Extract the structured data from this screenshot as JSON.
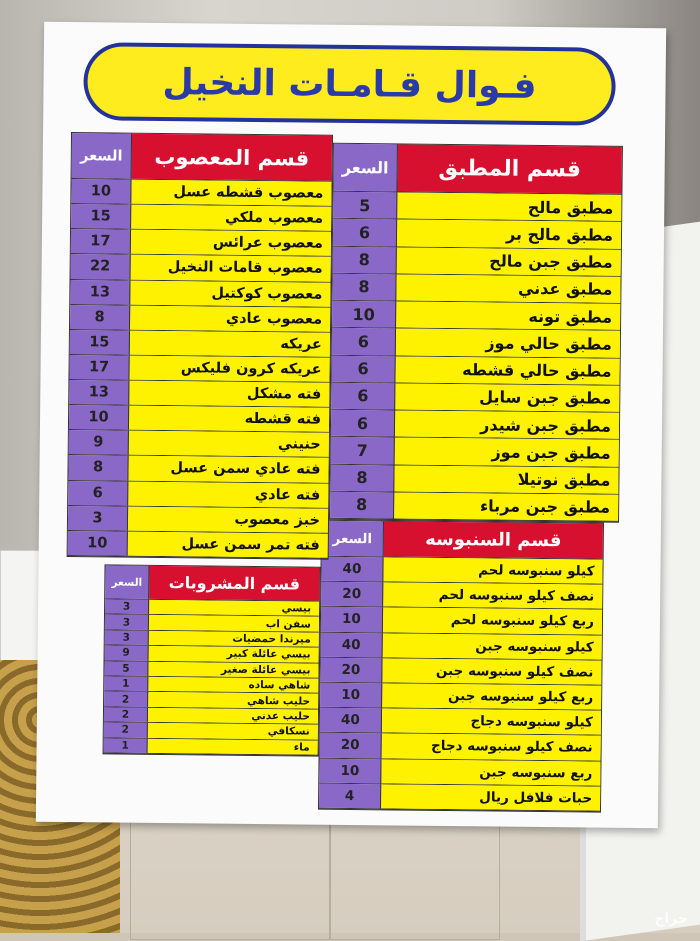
{
  "title": "فـوال قـامـات النخيل",
  "price_label": "السعر",
  "colors": {
    "header": "#d8102f",
    "price_col": "#8a68c8",
    "item_bg": "#fff200",
    "title_blue": "#2a3aa8"
  },
  "masoub": {
    "title": "قسم المعصوب",
    "items": [
      {
        "name": "معصوب قشطه عسل",
        "price": "10"
      },
      {
        "name": "معصوب ملكي",
        "price": "15"
      },
      {
        "name": "معصوب عرائس",
        "price": "17"
      },
      {
        "name": "معصوب قامات النخيل",
        "price": "22"
      },
      {
        "name": "معصوب كوكتيل",
        "price": "13"
      },
      {
        "name": "معصوب عادي",
        "price": "8"
      },
      {
        "name": "عريكه",
        "price": "15"
      },
      {
        "name": "عريكه كرون فليكس",
        "price": "17"
      },
      {
        "name": "فته مشكل",
        "price": "13"
      },
      {
        "name": "فته قشطه",
        "price": "10"
      },
      {
        "name": "حنيني",
        "price": "9"
      },
      {
        "name": "فته عادي سمن عسل",
        "price": "8"
      },
      {
        "name": "فته عادي",
        "price": "6"
      },
      {
        "name": "خبز معصوب",
        "price": "3"
      },
      {
        "name": "فته تمر سمن عسل",
        "price": "10"
      }
    ]
  },
  "drinks": {
    "title": "قسم المشروبات",
    "items": [
      {
        "name": "بيسي",
        "price": "3"
      },
      {
        "name": "سفن اب",
        "price": "3"
      },
      {
        "name": "ميرندا حمضيات",
        "price": "3"
      },
      {
        "name": "بيسي عائلة كبير",
        "price": "9"
      },
      {
        "name": "بيسي عائلة صغير",
        "price": "5"
      },
      {
        "name": "شاهي ساده",
        "price": "1"
      },
      {
        "name": "حليب شاهي",
        "price": "2"
      },
      {
        "name": "حليب عدني",
        "price": "2"
      },
      {
        "name": "نسكافي",
        "price": "2"
      },
      {
        "name": "ماء",
        "price": "1"
      }
    ]
  },
  "mutabbaq": {
    "title": "قسم المطبق",
    "items": [
      {
        "name": "مطبق مالح",
        "price": "5"
      },
      {
        "name": "مطبق مالح بر",
        "price": "6"
      },
      {
        "name": "مطبق جبن مالح",
        "price": "8"
      },
      {
        "name": "مطبق عدني",
        "price": "8"
      },
      {
        "name": "مطبق تونه",
        "price": "10"
      },
      {
        "name": "مطبق حالي موز",
        "price": "6"
      },
      {
        "name": "مطبق حالي قشطه",
        "price": "6"
      },
      {
        "name": "مطبق جبن سايل",
        "price": "6"
      },
      {
        "name": "مطبق جبن شيدر",
        "price": "6"
      },
      {
        "name": "مطبق جبن موز",
        "price": "7"
      },
      {
        "name": "مطبق نوتيلا",
        "price": "8"
      },
      {
        "name": "مطبق جبن مرباء",
        "price": "8"
      }
    ]
  },
  "sanbosa": {
    "title": "قسم السنبوسه",
    "items": [
      {
        "name": "كيلو سنبوسه لحم",
        "price": "40"
      },
      {
        "name": "نصف كيلو سنبوسه لحم",
        "price": "20"
      },
      {
        "name": "ربع كيلو سنبوسه لحم",
        "price": "10"
      },
      {
        "name": "كيلو سنبوسه جبن",
        "price": "40"
      },
      {
        "name": "نصف كيلو سنبوسه جبن",
        "price": "20"
      },
      {
        "name": "ربع كيلو سنبوسه جبن",
        "price": "10"
      },
      {
        "name": "كيلو سنبوسه دجاج",
        "price": "40"
      },
      {
        "name": "نصف كيلو سنبوسه دجاج",
        "price": "20"
      },
      {
        "name": "ربع سنبوسه جبن",
        "price": "10"
      },
      {
        "name": "حبات فلافل ريال",
        "price": "4"
      }
    ]
  },
  "watermark": "حراج"
}
